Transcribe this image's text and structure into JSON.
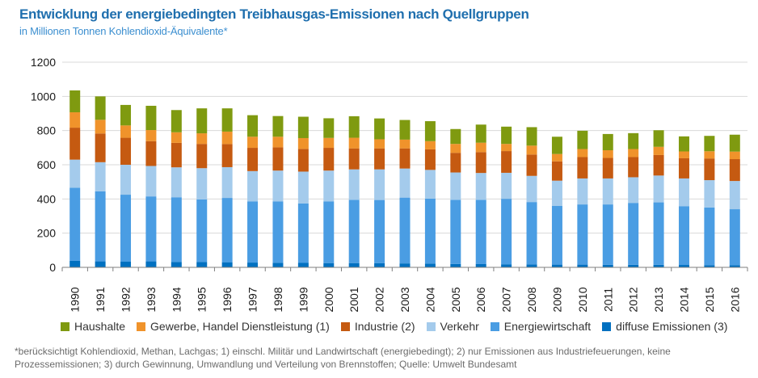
{
  "header": {
    "title": "Entwicklung der energiebedingten Treibhausgas-Emissionen nach Quellgruppen",
    "subtitle": "in Millionen Tonnen Kohlendioxid-Äquivalente*"
  },
  "footnote": "*berücksichtigt Kohlendioxid, Methan, Lachgas; 1) einschl. Militär und Landwirtschaft (energiebedingt); 2) nur Emissionen aus Industriefeuerungen, keine Prozessemissionen; 3) durch Gewinnung, Umwandlung und Verteilung von Brennstoffen; Quelle: Umwelt Bundesamt",
  "chart_data": {
    "type": "bar",
    "stacked": true,
    "categories": [
      "1990",
      "1991",
      "1992",
      "1993",
      "1994",
      "1995",
      "1996",
      "1997",
      "1998",
      "1999",
      "2000",
      "2001",
      "2002",
      "2003",
      "2004",
      "2005",
      "2006",
      "2007",
      "2008",
      "2009",
      "2010",
      "2011",
      "2012",
      "2013",
      "2014",
      "2015",
      "2016"
    ],
    "ylim": [
      0,
      1200
    ],
    "yticks": [
      0,
      200,
      400,
      600,
      800,
      1000,
      1200
    ],
    "grid": true,
    "legend_position": "bottom",
    "series": [
      {
        "name": "diffuse Emissionen (3)",
        "color": "#0070c0",
        "values": [
          38,
          35,
          33,
          35,
          32,
          31,
          30,
          28,
          27,
          26,
          25,
          25,
          24,
          23,
          22,
          20,
          19,
          18,
          17,
          16,
          16,
          15,
          15,
          15,
          14,
          13,
          13
        ]
      },
      {
        "name": "Energiewirtschaft",
        "color": "#4a9de3",
        "values": [
          428,
          410,
          392,
          380,
          378,
          366,
          376,
          357,
          358,
          348,
          360,
          370,
          370,
          385,
          380,
          375,
          376,
          383,
          365,
          343,
          352,
          353,
          362,
          365,
          344,
          337,
          327
        ]
      },
      {
        "name": "Verkehr",
        "color": "#a4cbec",
        "values": [
          164,
          170,
          175,
          178,
          175,
          183,
          180,
          178,
          181,
          186,
          181,
          178,
          179,
          170,
          168,
          160,
          157,
          152,
          153,
          148,
          152,
          152,
          150,
          157,
          162,
          160,
          165
        ]
      },
      {
        "name": "Industrie (2)",
        "color": "#c55a11",
        "values": [
          187,
          168,
          158,
          145,
          143,
          142,
          135,
          136,
          136,
          133,
          133,
          123,
          123,
          118,
          120,
          115,
          122,
          127,
          125,
          113,
          125,
          120,
          118,
          120,
          118,
          127,
          128
        ]
      },
      {
        "name": "Gewerbe, Handel Dienstleistung (1)",
        "color": "#f0932b",
        "values": [
          90,
          80,
          72,
          65,
          62,
          62,
          73,
          65,
          62,
          63,
          58,
          62,
          53,
          51,
          48,
          52,
          55,
          42,
          52,
          43,
          47,
          45,
          47,
          48,
          40,
          42,
          44
        ]
      },
      {
        "name": "Haushalte",
        "color": "#7f9a10",
        "values": [
          128,
          137,
          120,
          142,
          130,
          146,
          136,
          126,
          121,
          125,
          115,
          126,
          122,
          115,
          117,
          87,
          106,
          101,
          108,
          101,
          107,
          95,
          93,
          97,
          88,
          90,
          99
        ]
      }
    ]
  }
}
